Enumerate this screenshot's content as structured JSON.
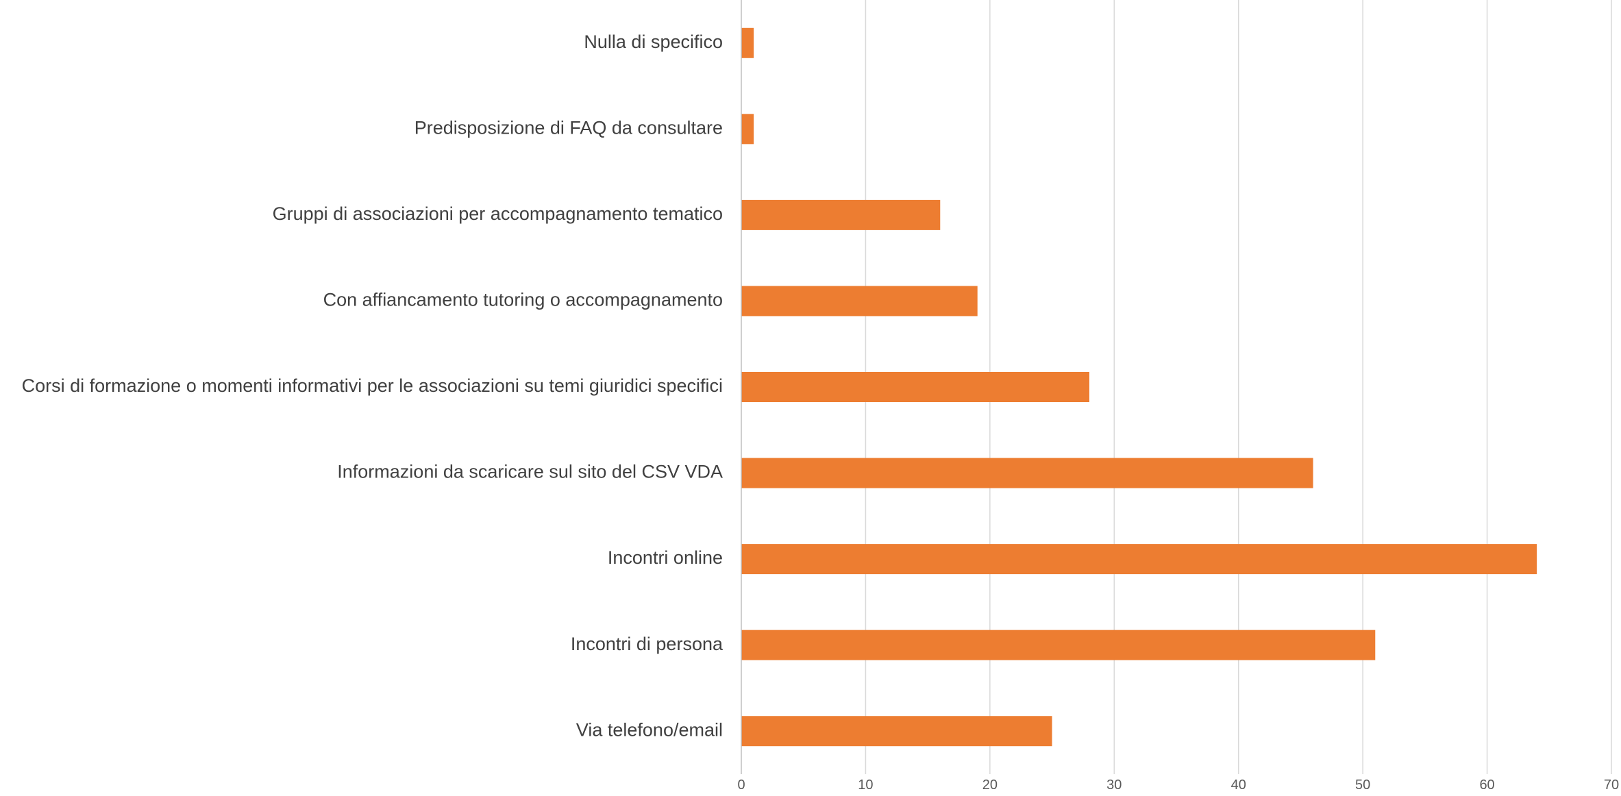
{
  "chart_data": {
    "type": "bar",
    "orientation": "horizontal",
    "categories": [
      "Nulla di specifico",
      "Predisposizione di FAQ da consultare",
      "Gruppi di associazioni per accompagnamento tematico",
      "Con affiancamento tutoring o accompagnamento",
      "Corsi di formazione o momenti informativi per le associazioni su temi giuridici specifici",
      "Informazioni da scaricare sul sito del CSV VDA",
      "Incontri online",
      "Incontri di persona",
      "Via telefono/email"
    ],
    "values": [
      1,
      1,
      16,
      19,
      28,
      46,
      64,
      51,
      25
    ],
    "xlim": [
      0,
      70
    ],
    "xticks": [
      0,
      10,
      20,
      30,
      40,
      50,
      60,
      70
    ],
    "grid": "vertical",
    "bar_color": "#ed7d31",
    "legend": "none"
  }
}
